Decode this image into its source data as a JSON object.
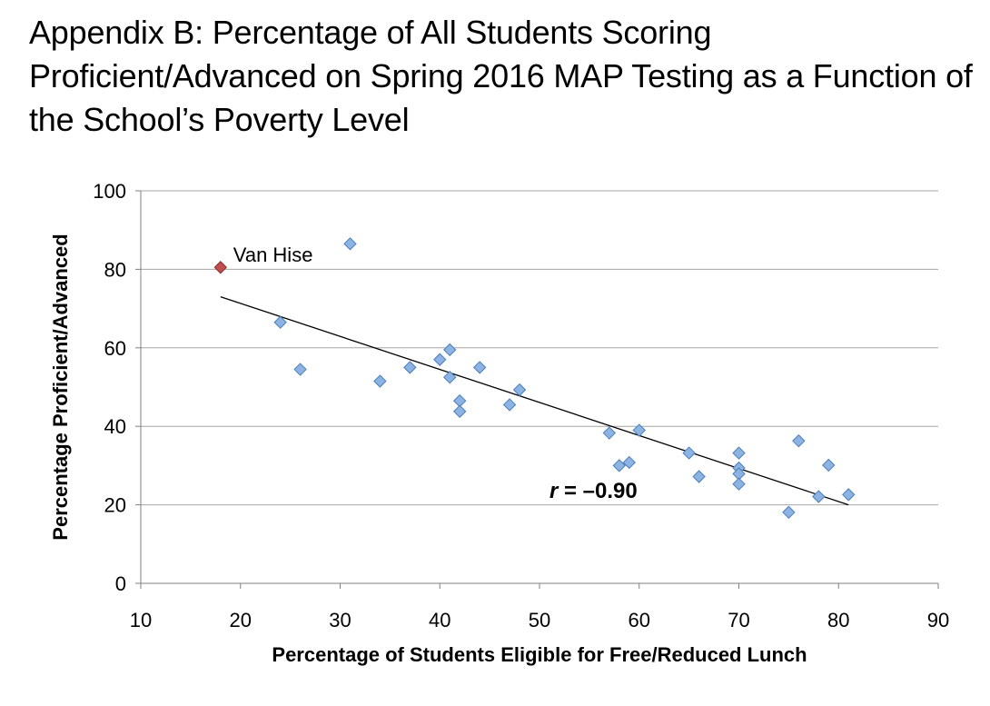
{
  "title": "Appendix B: Percentage of All Students Scoring Proficient/Advanced on Spring 2016 MAP Testing as a Function of the School’s Poverty Level",
  "chart_data": {
    "type": "scatter",
    "title": "Appendix B: Percentage of All Students Scoring Proficient/Advanced on Spring 2016 MAP Testing as a Function of the School’s Poverty Level",
    "xlabel": "Percentage of Students Eligible for Free/Reduced Lunch",
    "ylabel": "Percentage Proficient/Advanced",
    "xlim": [
      10,
      90
    ],
    "ylim": [
      0,
      100
    ],
    "xticks": [
      10,
      20,
      30,
      40,
      50,
      60,
      70,
      80,
      90
    ],
    "yticks": [
      0,
      20,
      40,
      60,
      80,
      100
    ],
    "grid": {
      "horizontal": true,
      "vertical": false
    },
    "legend": "none",
    "colors": {
      "marker_fill": "#8db3e2",
      "marker_stroke": "#4a7ebb",
      "highlight_fill": "#c0504d",
      "highlight_stroke": "#8b2d2a",
      "gridline": "#a6a6a6",
      "trendline": "#000000"
    },
    "series": [
      {
        "points": [
          {
            "x": 31,
            "y": 86.5
          },
          {
            "x": 24,
            "y": 66.5
          },
          {
            "x": 26,
            "y": 54.5
          },
          {
            "x": 34,
            "y": 51.5
          },
          {
            "x": 37,
            "y": 55
          },
          {
            "x": 40,
            "y": 57
          },
          {
            "x": 41,
            "y": 59.5
          },
          {
            "x": 41,
            "y": 52.5
          },
          {
            "x": 44,
            "y": 55
          },
          {
            "x": 42,
            "y": 46.5
          },
          {
            "x": 42,
            "y": 43.8
          },
          {
            "x": 47,
            "y": 45.5
          },
          {
            "x": 48,
            "y": 49.3
          },
          {
            "x": 57,
            "y": 38.3
          },
          {
            "x": 60,
            "y": 39
          },
          {
            "x": 58,
            "y": 30
          },
          {
            "x": 59,
            "y": 30.8
          },
          {
            "x": 65,
            "y": 33.2
          },
          {
            "x": 66,
            "y": 27.2
          },
          {
            "x": 70,
            "y": 33.2
          },
          {
            "x": 70,
            "y": 29.4
          },
          {
            "x": 70,
            "y": 27.9
          },
          {
            "x": 70,
            "y": 25.3
          },
          {
            "x": 76,
            "y": 36.3
          },
          {
            "x": 79,
            "y": 30.1
          },
          {
            "x": 78,
            "y": 22.1
          },
          {
            "x": 81,
            "y": 22.6
          },
          {
            "x": 75,
            "y": 18.1
          }
        ]
      }
    ],
    "highlight": {
      "x": 18,
      "y": 80.5,
      "label": "Van Hise"
    },
    "trendline": {
      "x0": 18,
      "y0": 73,
      "x1": 81,
      "y1": 20
    },
    "annotation": {
      "r_symbol": "r",
      "r_value": " = –0.90",
      "x": 51,
      "y": 25
    }
  }
}
